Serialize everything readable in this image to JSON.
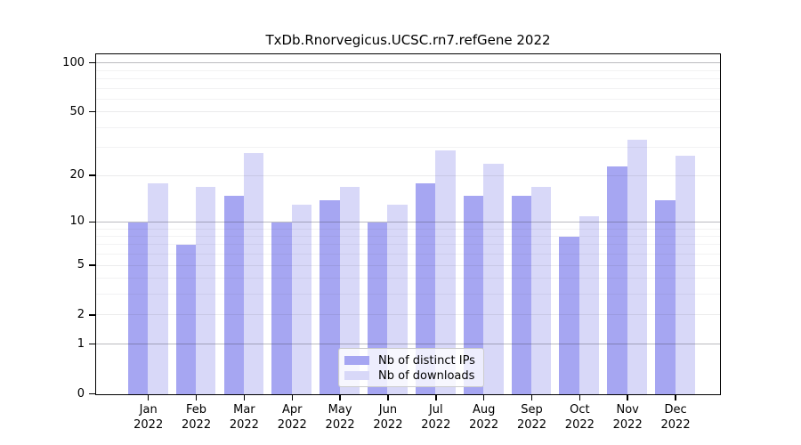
{
  "chart_data": {
    "type": "bar",
    "title": "TxDb.Rnorvegicus.UCSC.rn7.refGene 2022",
    "scale": "log10(1+y)",
    "year": "2022",
    "months": [
      "Jan",
      "Feb",
      "Mar",
      "Apr",
      "May",
      "Jun",
      "Jul",
      "Aug",
      "Sep",
      "Oct",
      "Nov",
      "Dec"
    ],
    "categories": [
      "Jan 2022",
      "Feb 2022",
      "Mar 2022",
      "Apr 2022",
      "May 2022",
      "Jun 2022",
      "Jul 2022",
      "Aug 2022",
      "Sep 2022",
      "Oct 2022",
      "Nov 2022",
      "Dec 2022"
    ],
    "series": [
      {
        "name": "Nb of distinct IPs",
        "color": "#a6a6f2",
        "values": [
          10,
          7,
          15,
          10,
          14,
          10,
          18,
          15,
          15,
          8,
          23,
          14
        ]
      },
      {
        "name": "Nb of downloads",
        "color": "#d8d8f8",
        "values": [
          18,
          17,
          28,
          13,
          17,
          13,
          29,
          24,
          17,
          11,
          34,
          27
        ]
      }
    ],
    "y_ticks": [
      0,
      1,
      2,
      5,
      10,
      20,
      50,
      100
    ],
    "y_gridlines_minor": [
      3,
      4,
      6,
      7,
      8,
      9,
      30,
      40,
      60,
      70,
      80,
      90
    ],
    "y_gridlines_mid": [
      2,
      5,
      20,
      50
    ],
    "y_gridlines_major": [
      1,
      10,
      100
    ],
    "ylim": [
      0,
      116
    ],
    "grid": true,
    "legend_position": "bottom-center",
    "xlabel": "",
    "ylabel": ""
  },
  "colors": {
    "bar_ips": "#a6a6f2",
    "bar_downloads": "#d8d8f8",
    "axis": "#000000",
    "grid_major": "rgba(60,60,75,0.35)",
    "grid_minor": "rgba(70,70,85,0.07)",
    "legend_border": "#cccccc",
    "legend_background": "rgba(255,255,255,0.8)"
  }
}
